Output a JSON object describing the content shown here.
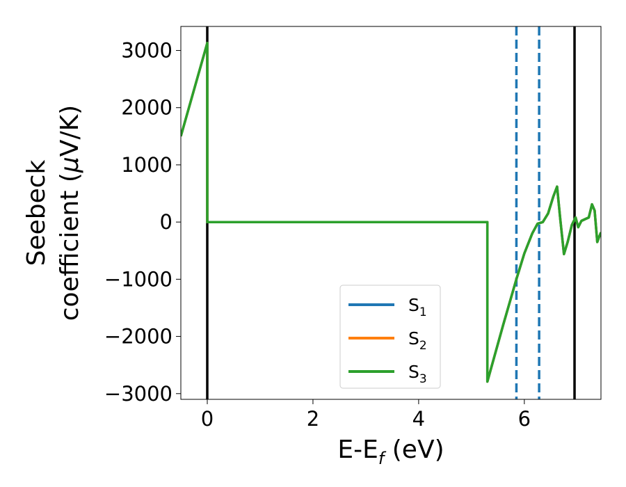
{
  "chart_data": {
    "type": "line",
    "title": "",
    "xlabel": "E-E",
    "xlabel_sub": "f",
    "xlabel_unit": " (eV)",
    "ylabel_line1": "Seebeck",
    "ylabel_line2": "coefficient  (",
    "ylabel_mu": "μ",
    "ylabel_unit": "V/K)",
    "xlim": [
      -0.5,
      7.45
    ],
    "ylim": [
      -3100,
      3420
    ],
    "xticks": [
      0,
      2,
      4,
      6
    ],
    "xtick_labels": [
      "0",
      "2",
      "4",
      "6"
    ],
    "yticks": [
      -3000,
      -2000,
      -1000,
      0,
      1000,
      2000,
      3000
    ],
    "ytick_labels": [
      "−3000",
      "−2000",
      "−1000",
      "0",
      "1000",
      "2000",
      "3000"
    ],
    "grid": false,
    "legend_position": "lower-center",
    "series": [
      {
        "name": "S",
        "sub": "1",
        "color": "#1f77b4",
        "x": [
          -0.5,
          0.0,
          0.0,
          5.3,
          5.3,
          5.6,
          5.85,
          6.0,
          6.15,
          6.25,
          6.35,
          6.45,
          6.55,
          6.62,
          6.68,
          6.75,
          6.82,
          6.9,
          6.97,
          7.02,
          7.08,
          7.15,
          7.22,
          7.28,
          7.33,
          7.38,
          7.42,
          7.45
        ],
        "y": [
          1500,
          3130,
          0,
          0,
          -2790,
          -1800,
          -1000,
          -550,
          -200,
          -30,
          0,
          150,
          450,
          620,
          50,
          -560,
          -350,
          -50,
          80,
          -90,
          20,
          50,
          80,
          310,
          200,
          -350,
          -250,
          -180
        ]
      },
      {
        "name": "S",
        "sub": "2",
        "color": "#ff7f0e",
        "x": [
          -0.5,
          0.0,
          0.0,
          5.3,
          5.3,
          5.6,
          5.85,
          6.0,
          6.15,
          6.25,
          6.35,
          6.45,
          6.55,
          6.62,
          6.68,
          6.75,
          6.82,
          6.9,
          6.97,
          7.02,
          7.08,
          7.15,
          7.22,
          7.28,
          7.33,
          7.38,
          7.42,
          7.45
        ],
        "y": [
          1500,
          3130,
          0,
          0,
          -2790,
          -1800,
          -1000,
          -550,
          -200,
          -30,
          0,
          150,
          450,
          620,
          50,
          -560,
          -350,
          -50,
          80,
          -90,
          20,
          50,
          80,
          310,
          200,
          -350,
          -250,
          -180
        ]
      },
      {
        "name": "S",
        "sub": "3",
        "color": "#2ca02c",
        "x": [
          -0.5,
          0.0,
          0.0,
          5.3,
          5.3,
          5.6,
          5.85,
          6.0,
          6.15,
          6.25,
          6.35,
          6.45,
          6.55,
          6.62,
          6.68,
          6.75,
          6.82,
          6.9,
          6.97,
          7.02,
          7.08,
          7.15,
          7.22,
          7.28,
          7.33,
          7.38,
          7.42,
          7.45
        ],
        "y": [
          1500,
          3130,
          0,
          0,
          -2790,
          -1800,
          -1000,
          -550,
          -200,
          -30,
          0,
          150,
          450,
          620,
          50,
          -560,
          -350,
          -50,
          80,
          -90,
          20,
          50,
          80,
          310,
          200,
          -350,
          -250,
          -180
        ]
      }
    ],
    "vertical_lines": [
      {
        "x": 0.0,
        "color": "#000000",
        "style": "solid"
      },
      {
        "x": 6.95,
        "color": "#000000",
        "style": "solid"
      },
      {
        "x": 5.85,
        "color": "#1f77b4",
        "style": "dashed"
      },
      {
        "x": 6.28,
        "color": "#1f77b4",
        "style": "dashed"
      }
    ]
  }
}
